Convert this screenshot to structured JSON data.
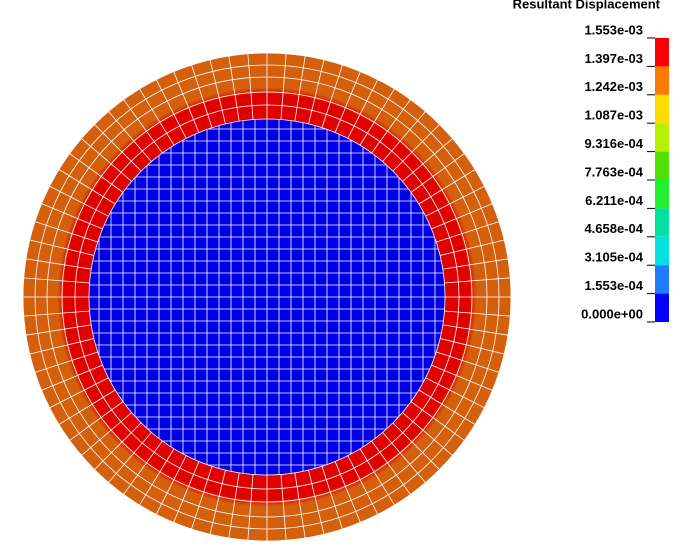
{
  "legend": {
    "title": "Resultant Displacement",
    "labels": [
      "1.553e-03",
      "1.397e-03",
      "1.242e-03",
      "1.087e-03",
      "9.316e-04",
      "7.763e-04",
      "6.211e-04",
      "4.658e-04",
      "3.105e-04",
      "1.553e-04",
      "0.000e+00"
    ],
    "colors": [
      "#ff0000",
      "#ff7a00",
      "#ffdc00",
      "#b4f000",
      "#50e000",
      "#20f030",
      "#00e0a0",
      "#00e0e0",
      "#1e7cff",
      "#0000ff"
    ]
  }
}
